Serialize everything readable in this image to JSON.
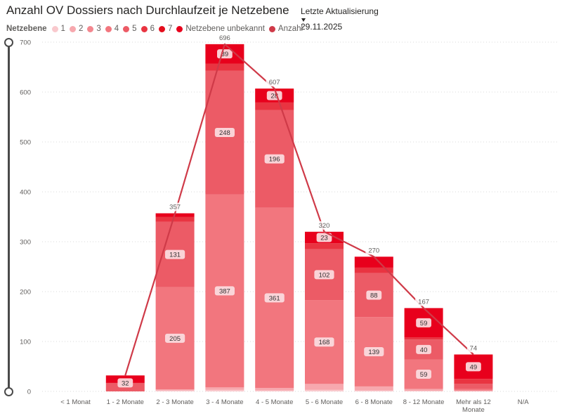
{
  "title": "Anzahl OV Dossiers nach Durchlaufzeit je Netzebene",
  "update": {
    "label": "Letzte Aktualisierung",
    "value": "29.11.2025"
  },
  "legend": {
    "title": "Netzebene",
    "items": [
      {
        "label": "1",
        "color": "#f9c9cd"
      },
      {
        "label": "2",
        "color": "#f7a8ae"
      },
      {
        "label": "3",
        "color": "#f3878f"
      },
      {
        "label": "4",
        "color": "#f2767e"
      },
      {
        "label": "5",
        "color": "#ec5b66"
      },
      {
        "label": "6",
        "color": "#e93441"
      },
      {
        "label": "7",
        "color": "#e40d1c"
      },
      {
        "label": "Netzebene unbekannt",
        "color": "#e8001c"
      },
      {
        "label": "Anzahl",
        "color": "#cf3a48"
      }
    ]
  },
  "chart_data": {
    "type": "bar",
    "stacked": true,
    "ylim": [
      0,
      700
    ],
    "yticks": [
      0,
      100,
      200,
      300,
      400,
      500,
      600,
      700
    ],
    "grid": true,
    "categories": [
      "< 1 Monat",
      "1 - 2 Monate",
      "2 - 3 Monate",
      "3 - 4 Monate",
      "4 - 5 Monate",
      "5 - 6 Monate",
      "6 - 8 Monate",
      "8 - 12 Monate",
      "Mehr als 12 Monate",
      "N/A"
    ],
    "series": [
      {
        "name": "1",
        "color": "#f9c9cd",
        "values": [
          0,
          0,
          2,
          3,
          2,
          3,
          2,
          1,
          0,
          0
        ]
      },
      {
        "name": "2",
        "color": "#f7a8ae",
        "values": [
          0,
          0,
          2,
          5,
          5,
          12,
          8,
          4,
          2,
          0
        ]
      },
      {
        "name": "3",
        "color": "#f3878f",
        "values": [
          0,
          0,
          0,
          0,
          0,
          0,
          0,
          0,
          0,
          0
        ]
      },
      {
        "name": "4",
        "color": "#f2767e",
        "values": [
          0,
          0,
          205,
          387,
          361,
          168,
          139,
          59,
          3,
          0
        ]
      },
      {
        "name": "5",
        "color": "#ec5b66",
        "values": [
          0,
          17,
          131,
          248,
          196,
          102,
          88,
          40,
          10,
          0
        ]
      },
      {
        "name": "6",
        "color": "#e93441",
        "values": [
          0,
          0,
          10,
          14,
          15,
          12,
          11,
          4,
          10,
          0
        ]
      },
      {
        "name": "7",
        "color": "#e40d1c",
        "values": [
          0,
          0,
          0,
          0,
          0,
          0,
          0,
          0,
          0,
          0
        ]
      },
      {
        "name": "Netzebene unbekannt",
        "color": "#e8001c",
        "values": [
          0,
          15,
          7,
          39,
          28,
          23,
          22,
          59,
          49,
          0
        ]
      }
    ],
    "segment_labels": [
      [],
      [
        {
          "series": 5,
          "text": "32"
        }
      ],
      [
        {
          "series": 3,
          "text": "205"
        },
        {
          "series": 4,
          "text": "131"
        }
      ],
      [
        {
          "series": 3,
          "text": "387"
        },
        {
          "series": 4,
          "text": "248"
        },
        {
          "series": 7,
          "text": "39"
        }
      ],
      [
        {
          "series": 3,
          "text": "361"
        },
        {
          "series": 4,
          "text": "196"
        },
        {
          "series": 7,
          "text": "28"
        }
      ],
      [
        {
          "series": 3,
          "text": "168"
        },
        {
          "series": 4,
          "text": "102"
        },
        {
          "series": 7,
          "text": "23"
        }
      ],
      [
        {
          "series": 3,
          "text": "139"
        },
        {
          "series": 4,
          "text": "88"
        }
      ],
      [
        {
          "series": 3,
          "text": "59"
        },
        {
          "series": 4,
          "text": "40"
        },
        {
          "series": 7,
          "text": "59"
        }
      ],
      [
        {
          "series": 7,
          "text": "49"
        }
      ],
      []
    ],
    "line": {
      "name": "Anzahl",
      "color": "#cf3a48",
      "values": [
        null,
        32,
        357,
        696,
        607,
        320,
        270,
        167,
        74,
        null
      ],
      "labels": [
        "",
        "",
        "357",
        "696",
        "607",
        "320",
        "270",
        "167",
        "74",
        ""
      ]
    }
  }
}
